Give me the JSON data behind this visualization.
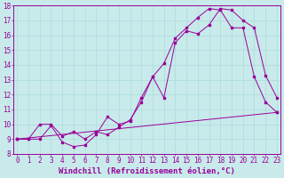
{
  "xlabel": "Windchill (Refroidissement éolien,°C)",
  "bg_color": "#c8eaea",
  "line_color": "#990099",
  "grid_color": "#aadddd",
  "x_min": 0,
  "x_max": 23,
  "y_min": 8,
  "y_max": 18,
  "line1_x": [
    0,
    1,
    2,
    3,
    4,
    5,
    6,
    7,
    8,
    9,
    10,
    11,
    12,
    13,
    14,
    15,
    16,
    17,
    18,
    19,
    20,
    21,
    22,
    23
  ],
  "line1_y": [
    9.0,
    9.0,
    9.0,
    9.9,
    8.8,
    8.5,
    8.6,
    9.3,
    10.5,
    10.0,
    10.2,
    11.8,
    13.2,
    11.8,
    15.5,
    16.3,
    16.1,
    16.7,
    17.8,
    17.7,
    17.0,
    16.5,
    13.3,
    11.8
  ],
  "line2_x": [
    0,
    1,
    2,
    3,
    4,
    5,
    6,
    7,
    8,
    9,
    10,
    11,
    12,
    13,
    14,
    15,
    16,
    17,
    18,
    19,
    20,
    21,
    22,
    23
  ],
  "line2_y": [
    9.0,
    9.0,
    10.0,
    10.0,
    9.2,
    9.5,
    9.0,
    9.5,
    9.3,
    9.8,
    10.3,
    11.5,
    13.2,
    14.1,
    15.8,
    16.5,
    17.2,
    17.8,
    17.7,
    16.5,
    16.5,
    13.2,
    11.5,
    10.8
  ],
  "line3_x": [
    0,
    23
  ],
  "line3_y": [
    9.0,
    10.8
  ],
  "tick_fontsize": 5.5,
  "label_fontsize": 6.5
}
